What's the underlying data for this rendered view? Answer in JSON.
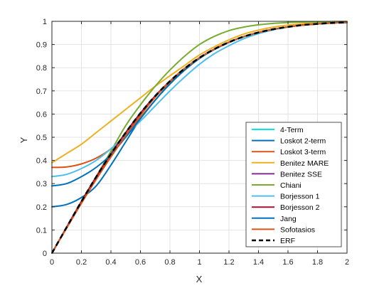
{
  "chart_data": {
    "type": "line",
    "title": "",
    "xlabel": "X",
    "ylabel": "Y",
    "xlim": [
      0,
      2
    ],
    "ylim": [
      0,
      1
    ],
    "xticks": [
      0,
      0.2,
      0.4,
      0.6,
      0.8,
      1,
      1.2,
      1.4,
      1.6,
      1.8,
      2
    ],
    "xtick_labels": [
      "0",
      "0.2",
      "0.4",
      "0.6",
      "0.8",
      "1",
      "1.2",
      "1.4",
      "1.6",
      "1.8",
      "2"
    ],
    "yticks": [
      0,
      0.1,
      0.2,
      0.3,
      0.4,
      0.5,
      0.6,
      0.7,
      0.8,
      0.9,
      1
    ],
    "ytick_labels": [
      "0",
      "0.1",
      "0.2",
      "0.3",
      "0.4",
      "0.5",
      "0.6",
      "0.7",
      "0.8",
      "0.9",
      "1"
    ],
    "grid": true,
    "legend_position": "bottom-right",
    "x": [
      0,
      0.1,
      0.2,
      0.3,
      0.4,
      0.5,
      0.6,
      0.7,
      0.8,
      0.9,
      1.0,
      1.1,
      1.2,
      1.3,
      1.4,
      1.5,
      1.6,
      1.7,
      1.8,
      1.9,
      2.0
    ],
    "series": [
      {
        "name": "4-Term",
        "color": "#00e5e5",
        "dash": "solid",
        "values": [
          0.0,
          0.112,
          0.223,
          0.329,
          0.428,
          0.52,
          0.604,
          0.678,
          0.742,
          0.797,
          0.843,
          0.88,
          0.91,
          0.934,
          0.952,
          0.966,
          0.976,
          0.984,
          0.989,
          0.993,
          0.995
        ]
      },
      {
        "name": "Loskot 2-term",
        "color": "#0072bd",
        "dash": "solid",
        "values": [
          0.2,
          0.21,
          0.24,
          0.29,
          0.38,
          0.48,
          0.58,
          0.66,
          0.73,
          0.79,
          0.84,
          0.88,
          0.91,
          0.934,
          0.952,
          0.966,
          0.976,
          0.984,
          0.989,
          0.993,
          0.995
        ]
      },
      {
        "name": "Loskot 3-term",
        "color": "#d95319",
        "dash": "solid",
        "values": [
          0.37,
          0.372,
          0.385,
          0.41,
          0.45,
          0.51,
          0.585,
          0.66,
          0.735,
          0.795,
          0.843,
          0.88,
          0.91,
          0.934,
          0.952,
          0.966,
          0.976,
          0.984,
          0.989,
          0.993,
          0.995
        ]
      },
      {
        "name": "Benitez MARE",
        "color": "#edb120",
        "dash": "solid",
        "values": [
          0.39,
          0.43,
          0.47,
          0.52,
          0.57,
          0.62,
          0.67,
          0.72,
          0.765,
          0.81,
          0.855,
          0.89,
          0.92,
          0.945,
          0.962,
          0.975,
          0.984,
          0.99,
          0.994,
          0.996,
          0.998
        ]
      },
      {
        "name": "Benitez SSE",
        "color": "#7e2f8e",
        "dash": "solid",
        "values": [
          0.0,
          0.112,
          0.222,
          0.328,
          0.428,
          0.52,
          0.604,
          0.678,
          0.742,
          0.797,
          0.843,
          0.88,
          0.91,
          0.934,
          0.952,
          0.966,
          0.976,
          0.984,
          0.989,
          0.993,
          0.995
        ]
      },
      {
        "name": "Chiani",
        "color": "#77ac30",
        "dash": "solid",
        "values": [
          0.0,
          0.11,
          0.22,
          0.33,
          0.44,
          0.55,
          0.64,
          0.72,
          0.79,
          0.85,
          0.9,
          0.935,
          0.96,
          0.975,
          0.985,
          0.991,
          0.995,
          0.997,
          0.998,
          0.999,
          0.9995
        ]
      },
      {
        "name": "Borjesson 1",
        "color": "#4dbeee",
        "dash": "solid",
        "values": [
          0.33,
          0.34,
          0.365,
          0.4,
          0.45,
          0.51,
          0.57,
          0.635,
          0.7,
          0.76,
          0.815,
          0.86,
          0.895,
          0.925,
          0.947,
          0.963,
          0.975,
          0.984,
          0.99,
          0.993,
          0.995
        ]
      },
      {
        "name": "Borjesson 2",
        "color": "#a2142f",
        "dash": "solid",
        "values": [
          0.0,
          0.112,
          0.223,
          0.329,
          0.428,
          0.52,
          0.604,
          0.678,
          0.742,
          0.797,
          0.843,
          0.88,
          0.91,
          0.934,
          0.952,
          0.966,
          0.976,
          0.984,
          0.989,
          0.993,
          0.995
        ]
      },
      {
        "name": "Jang",
        "color": "#0072bd",
        "dash": "solid",
        "values": [
          0.29,
          0.3,
          0.33,
          0.37,
          0.425,
          0.5,
          0.58,
          0.66,
          0.73,
          0.79,
          0.84,
          0.878,
          0.909,
          0.934,
          0.952,
          0.966,
          0.976,
          0.984,
          0.989,
          0.993,
          0.995
        ]
      },
      {
        "name": "Sofotasios",
        "color": "#d95319",
        "dash": "solid",
        "values": [
          0.0,
          0.108,
          0.215,
          0.318,
          0.415,
          0.507,
          0.595,
          0.673,
          0.742,
          0.797,
          0.843,
          0.88,
          0.91,
          0.934,
          0.952,
          0.966,
          0.976,
          0.984,
          0.989,
          0.993,
          0.995
        ]
      },
      {
        "name": "ERF",
        "color": "#000000",
        "dash": "dashed",
        "values": [
          0.0,
          0.112,
          0.223,
          0.329,
          0.428,
          0.52,
          0.604,
          0.678,
          0.742,
          0.797,
          0.843,
          0.88,
          0.91,
          0.934,
          0.952,
          0.966,
          0.976,
          0.984,
          0.989,
          0.993,
          0.995
        ]
      }
    ]
  }
}
